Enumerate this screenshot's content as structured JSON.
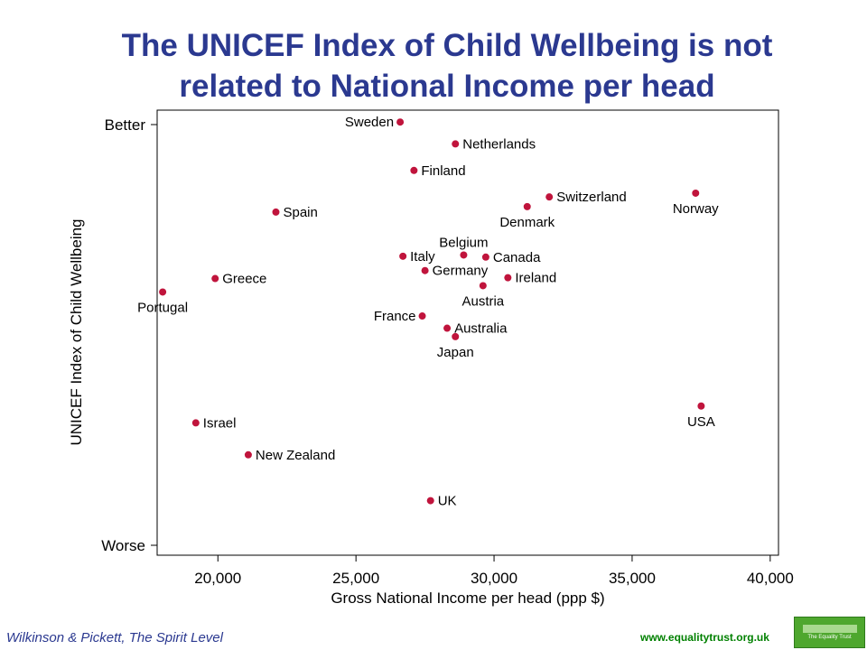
{
  "title_line1": "The UNICEF Index of Child Wellbeing is not",
  "title_line2": "related to National Income per head",
  "footer": {
    "citation": "Wilkinson & Pickett, The Spirit Level",
    "url": "www.equalitytrust.org.uk",
    "logo_text": "The Equality Trust"
  },
  "colors": {
    "title": "#2b3990",
    "points": "#c0143c",
    "footer_url": "#008000",
    "logo": "#4ea72e"
  },
  "chart_data": {
    "type": "scatter",
    "xlabel": "Gross National Income per head (ppp $)",
    "ylabel": "UNICEF Index of Child Wellbeing",
    "xlim": [
      17800,
      40300
    ],
    "ylim": [
      0,
      100
    ],
    "xticks": [
      20000,
      25000,
      30000,
      35000,
      40000
    ],
    "xtick_labels": [
      "20,000",
      "25,000",
      "30,000",
      "35,000",
      "40,000"
    ],
    "yticks": [
      {
        "value": 100,
        "label": "Better"
      },
      {
        "value": 0,
        "label": "Worse"
      }
    ],
    "points": [
      {
        "label": "Sweden",
        "x": 26600,
        "y": 100.6,
        "pos": "left"
      },
      {
        "label": "Netherlands",
        "x": 28600,
        "y": 95.4,
        "pos": "right"
      },
      {
        "label": "Finland",
        "x": 27100,
        "y": 89.1,
        "pos": "right"
      },
      {
        "label": "Switzerland",
        "x": 32000,
        "y": 82.8,
        "pos": "right"
      },
      {
        "label": "Denmark",
        "x": 31200,
        "y": 80.5,
        "pos": "below"
      },
      {
        "label": "Norway",
        "x": 37300,
        "y": 83.7,
        "pos": "below"
      },
      {
        "label": "Spain",
        "x": 22100,
        "y": 79.2,
        "pos": "right"
      },
      {
        "label": "Belgium",
        "x": 28900,
        "y": 69.0,
        "pos": "above"
      },
      {
        "label": "Italy",
        "x": 26700,
        "y": 68.7,
        "pos": "right"
      },
      {
        "label": "Canada",
        "x": 29700,
        "y": 68.5,
        "pos": "right"
      },
      {
        "label": "Germany",
        "x": 27500,
        "y": 65.3,
        "pos": "right"
      },
      {
        "label": "Greece",
        "x": 19900,
        "y": 63.4,
        "pos": "right"
      },
      {
        "label": "Ireland",
        "x": 30500,
        "y": 63.6,
        "pos": "right"
      },
      {
        "label": "Austria",
        "x": 29600,
        "y": 61.7,
        "pos": "below"
      },
      {
        "label": "Portugal",
        "x": 18000,
        "y": 60.2,
        "pos": "below"
      },
      {
        "label": "France",
        "x": 27400,
        "y": 54.5,
        "pos": "left"
      },
      {
        "label": "Australia",
        "x": 28300,
        "y": 51.6,
        "pos": "right"
      },
      {
        "label": "Japan",
        "x": 28600,
        "y": 49.6,
        "pos": "below"
      },
      {
        "label": "USA",
        "x": 37500,
        "y": 33.1,
        "pos": "below"
      },
      {
        "label": "Israel",
        "x": 19200,
        "y": 29.1,
        "pos": "right"
      },
      {
        "label": "New Zealand",
        "x": 21100,
        "y": 21.5,
        "pos": "right"
      },
      {
        "label": "UK",
        "x": 27700,
        "y": 10.6,
        "pos": "right"
      }
    ]
  }
}
